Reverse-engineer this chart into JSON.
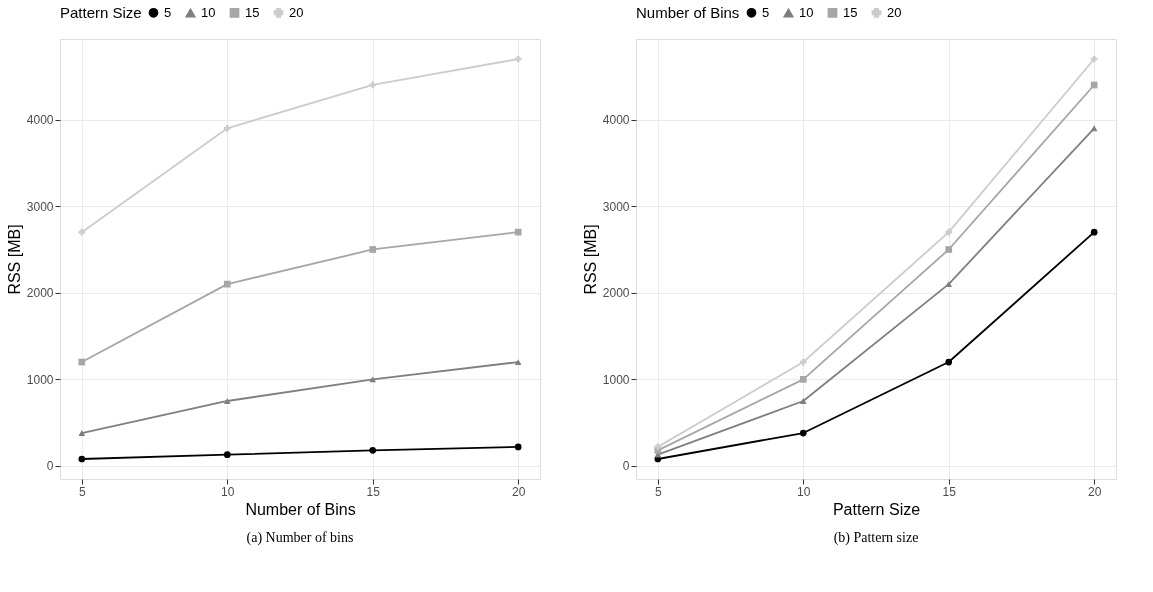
{
  "chart_data": [
    {
      "type": "line",
      "xlabel": "Number of Bins",
      "ylabel": "RSS [MB]",
      "legend_title": "Pattern Size",
      "legend": "top",
      "grid": true,
      "annotations": [
        "(a) Number of bins"
      ],
      "x": [
        5,
        10,
        15,
        20
      ],
      "xlim": [
        4.25,
        20.75
      ],
      "xticks": [
        5,
        10,
        15,
        20
      ],
      "ylim": [
        -151,
        4931
      ],
      "yticks": [
        0,
        1000,
        2000,
        3000,
        4000
      ],
      "series": [
        {
          "name": "5",
          "color": "#000000",
          "marker": "circle",
          "values": [
            80,
            130,
            180,
            220
          ]
        },
        {
          "name": "10",
          "color": "#7f7f7f",
          "marker": "triangle",
          "values": [
            380,
            750,
            1000,
            1200
          ]
        },
        {
          "name": "15",
          "color": "#a6a6a6",
          "marker": "square",
          "values": [
            1200,
            2100,
            2500,
            2700
          ]
        },
        {
          "name": "20",
          "color": "#cccccc",
          "marker": "cross",
          "values": [
            2700,
            3900,
            4400,
            4700
          ]
        }
      ]
    },
    {
      "type": "line",
      "xlabel": "Pattern Size",
      "ylabel": "RSS [MB]",
      "legend_title": "Number of Bins",
      "legend": "top",
      "grid": true,
      "annotations": [
        "(b) Pattern size"
      ],
      "x": [
        5,
        10,
        15,
        20
      ],
      "xlim": [
        4.25,
        20.75
      ],
      "xticks": [
        5,
        10,
        15,
        20
      ],
      "ylim": [
        -151,
        4931
      ],
      "yticks": [
        0,
        1000,
        2000,
        3000,
        4000
      ],
      "series": [
        {
          "name": "5",
          "color": "#000000",
          "marker": "circle",
          "values": [
            80,
            380,
            1200,
            2700
          ]
        },
        {
          "name": "10",
          "color": "#7f7f7f",
          "marker": "triangle",
          "values": [
            130,
            750,
            2100,
            3900
          ]
        },
        {
          "name": "15",
          "color": "#a6a6a6",
          "marker": "square",
          "values": [
            180,
            1000,
            2500,
            4400
          ]
        },
        {
          "name": "20",
          "color": "#cccccc",
          "marker": "cross",
          "values": [
            220,
            1200,
            2700,
            4700
          ]
        }
      ]
    }
  ]
}
